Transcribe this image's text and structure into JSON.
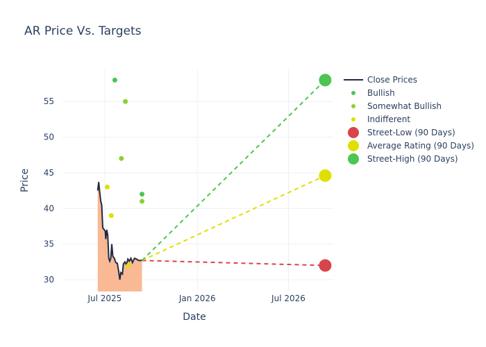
{
  "chart_data": {
    "type": "line",
    "title": "AR Price Vs. Targets",
    "xlabel": "Date",
    "ylabel": "Price",
    "xlim": [
      "2025-04-08",
      "2026-09-28"
    ],
    "ylim": [
      28.35,
      59.5
    ],
    "x_ticks": [
      {
        "date": "2025-07-01",
        "label": "Jul 2025"
      },
      {
        "date": "2026-01-01",
        "label": "Jan 2026"
      },
      {
        "date": "2026-07-01",
        "label": "Jul 2026"
      }
    ],
    "y_ticks": [
      30,
      35,
      40,
      45,
      50,
      55
    ],
    "grid": true,
    "legend_position": "right",
    "close_prices": {
      "name": "Close Prices",
      "color": "#1f2a44",
      "fill_color": "#f9b995",
      "points": [
        [
          "2025-06-17",
          42.5
        ],
        [
          "2025-06-19",
          43.7
        ],
        [
          "2025-06-21",
          42.3
        ],
        [
          "2025-06-23",
          41
        ],
        [
          "2025-06-25",
          40.5
        ],
        [
          "2025-06-27",
          37.3
        ],
        [
          "2025-06-30",
          37
        ],
        [
          "2025-07-02",
          36.8
        ],
        [
          "2025-07-03",
          35.7
        ],
        [
          "2025-07-05",
          37
        ],
        [
          "2025-07-07",
          36.2
        ],
        [
          "2025-07-09",
          33
        ],
        [
          "2025-07-11",
          32.6
        ],
        [
          "2025-07-13",
          33
        ],
        [
          "2025-07-15",
          35
        ],
        [
          "2025-07-17",
          33.3
        ],
        [
          "2025-07-20",
          33
        ],
        [
          "2025-07-23",
          32.4
        ],
        [
          "2025-07-26",
          32.3
        ],
        [
          "2025-07-29",
          31
        ],
        [
          "2025-07-31",
          30
        ],
        [
          "2025-08-02",
          31
        ],
        [
          "2025-08-05",
          30.8
        ],
        [
          "2025-08-07",
          32.2
        ],
        [
          "2025-08-10",
          32.5
        ],
        [
          "2025-08-13",
          32.1
        ],
        [
          "2025-08-16",
          32.9
        ],
        [
          "2025-08-19",
          32.6
        ],
        [
          "2025-08-22",
          33
        ],
        [
          "2025-08-25",
          32.4
        ],
        [
          "2025-08-29",
          33
        ],
        [
          "2025-09-02",
          32.9
        ],
        [
          "2025-09-06",
          32.7
        ],
        [
          "2025-09-13",
          32.7
        ]
      ]
    },
    "ratings": [
      {
        "name": "Bullish",
        "color": "#4cc552",
        "points": [
          [
            "2025-07-21",
            58
          ],
          [
            "2025-09-13",
            42
          ]
        ]
      },
      {
        "name": "Somewhat Bullish",
        "color": "#8bd12e",
        "points": [
          [
            "2025-08-11",
            55
          ],
          [
            "2025-08-03",
            47
          ],
          [
            "2025-09-13",
            41
          ]
        ]
      },
      {
        "name": "Indifferent",
        "color": "#e0e000",
        "points": [
          [
            "2025-07-06",
            43
          ],
          [
            "2025-07-14",
            39
          ],
          [
            "2025-08-17",
            32
          ]
        ]
      }
    ],
    "targets": [
      {
        "name": "Street-Low (90 Days)",
        "color": "#d9434b",
        "start": [
          "2025-09-13",
          32.7
        ],
        "end": [
          "2026-09-12",
          32
        ]
      },
      {
        "name": "Average Rating (90 Days)",
        "color": "#e0e000",
        "start": [
          "2025-09-13",
          32.7
        ],
        "end": [
          "2026-09-12",
          44.6
        ]
      },
      {
        "name": "Street-High (90 Days)",
        "color": "#4cc552",
        "start": [
          "2025-09-13",
          32.7
        ],
        "end": [
          "2026-09-12",
          58
        ]
      }
    ]
  }
}
